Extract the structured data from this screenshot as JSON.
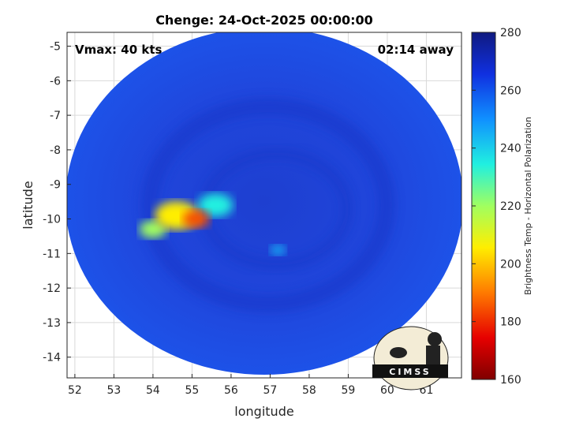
{
  "title": "Chenge: 24-Oct-2025 00:00:00",
  "annotation_left": "Vmax: 40 kts",
  "annotation_right": "02:14 away",
  "xlabel": "longitude",
  "ylabel": "latitude",
  "colorbar_label": "Brightness Temp - Horizontal Polarization",
  "logo_text": "CIMSS",
  "xlim": [
    51.8,
    61.9
  ],
  "ylim": [
    -14.6,
    -4.6
  ],
  "x_ticks": [
    52,
    53,
    54,
    55,
    56,
    57,
    58,
    59,
    60,
    61
  ],
  "y_ticks": [
    -5,
    -6,
    -7,
    -8,
    -9,
    -10,
    -11,
    -12,
    -13,
    -14
  ],
  "colorbar_range": [
    160,
    280
  ],
  "colorbar_ticks": [
    280,
    260,
    240,
    220,
    200,
    180,
    160
  ],
  "colors": {
    "background": "#ffffff",
    "swath_base": "#1f47e0",
    "ring_dark": "#1630c4",
    "cold_core": "#6b0000"
  },
  "features": [
    {
      "lon": 54.6,
      "lat": -9.9,
      "value": 205,
      "r": 0.55
    },
    {
      "lon": 55.1,
      "lat": -10.0,
      "value": 185,
      "r": 0.35
    },
    {
      "lon": 55.6,
      "lat": -9.6,
      "value": 235,
      "r": 0.45
    },
    {
      "lon": 54.0,
      "lat": -10.3,
      "value": 220,
      "r": 0.35
    },
    {
      "lon": 57.2,
      "lat": -10.9,
      "value": 245,
      "r": 0.2
    }
  ]
}
